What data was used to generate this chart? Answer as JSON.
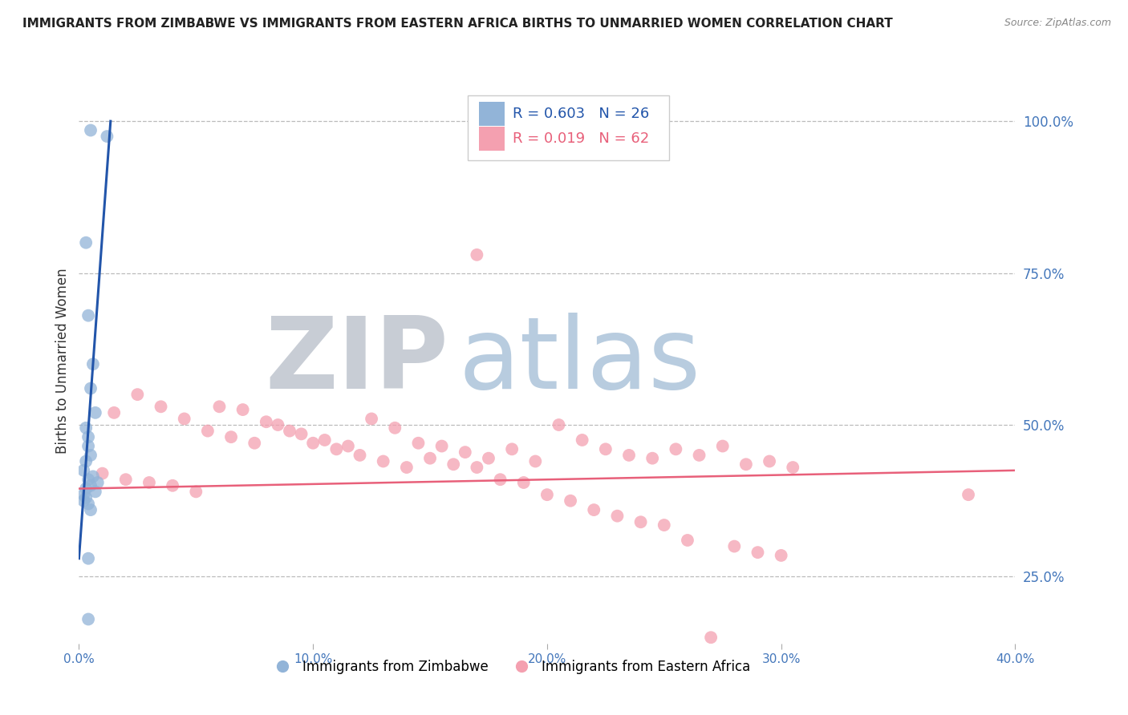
{
  "title": "IMMIGRANTS FROM ZIMBABWE VS IMMIGRANTS FROM EASTERN AFRICA BIRTHS TO UNMARRIED WOMEN CORRELATION CHART",
  "source": "Source: ZipAtlas.com",
  "ylabel": "Births to Unmarried Women",
  "right_yticks": [
    100.0,
    75.0,
    50.0,
    25.0
  ],
  "right_ytick_labels": [
    "100.0%",
    "75.0%",
    "50.0%",
    "25.0%"
  ],
  "legend_r1": "R = 0.603",
  "legend_n1": "N = 26",
  "legend_r2": "R = 0.019",
  "legend_n2": "N = 62",
  "blue_color": "#92B4D8",
  "pink_color": "#F4A0B0",
  "blue_line_color": "#2255AA",
  "pink_line_color": "#E8607A",
  "watermark_ZIP_color": "#C8CDD5",
  "watermark_atlas_color": "#B8CCDF",
  "background_color": "#FFFFFF",
  "grid_color": "#BBBBBB",
  "title_color": "#222222",
  "axis_label_color": "#4477BB",
  "xlim": [
    0.0,
    40.0
  ],
  "ylim": [
    14.0,
    107.0
  ],
  "xticks": [
    0.0,
    10.0,
    20.0,
    30.0,
    40.0
  ],
  "xtick_labels": [
    "0.0%",
    "10.0%",
    "20.0%",
    "30.0%",
    "40.0%"
  ],
  "blue_scatter_x": [
    0.5,
    1.2,
    0.3,
    0.4,
    0.6,
    0.5,
    0.7,
    0.3,
    0.4,
    0.4,
    0.5,
    0.3,
    0.2,
    0.6,
    0.4,
    0.8,
    0.5,
    0.3,
    0.7,
    0.2,
    0.3,
    0.2,
    0.4,
    0.5,
    0.4,
    0.4
  ],
  "blue_scatter_y": [
    98.5,
    97.5,
    80.0,
    68.0,
    60.0,
    56.0,
    52.0,
    49.5,
    48.0,
    46.5,
    45.0,
    44.0,
    42.5,
    41.5,
    41.0,
    40.5,
    40.0,
    39.5,
    39.0,
    38.5,
    38.0,
    37.5,
    37.0,
    36.0,
    28.0,
    18.0
  ],
  "pink_scatter_x": [
    1.5,
    2.5,
    3.5,
    4.5,
    5.5,
    6.5,
    7.5,
    8.5,
    9.5,
    10.5,
    11.5,
    12.5,
    13.5,
    14.5,
    15.5,
    16.5,
    17.5,
    18.5,
    19.5,
    20.5,
    21.5,
    22.5,
    23.5,
    24.5,
    25.5,
    26.5,
    27.5,
    28.5,
    29.5,
    30.5,
    1.0,
    2.0,
    3.0,
    4.0,
    5.0,
    6.0,
    7.0,
    8.0,
    9.0,
    10.0,
    11.0,
    12.0,
    13.0,
    14.0,
    15.0,
    16.0,
    17.0,
    18.0,
    19.0,
    20.0,
    21.0,
    22.0,
    23.0,
    24.0,
    25.0,
    26.0,
    27.0,
    28.0,
    29.0,
    30.0,
    38.0,
    17.0
  ],
  "pink_scatter_y": [
    52.0,
    55.0,
    53.0,
    51.0,
    49.0,
    48.0,
    47.0,
    50.0,
    48.5,
    47.5,
    46.5,
    51.0,
    49.5,
    47.0,
    46.5,
    45.5,
    44.5,
    46.0,
    44.0,
    50.0,
    47.5,
    46.0,
    45.0,
    44.5,
    46.0,
    45.0,
    46.5,
    43.5,
    44.0,
    43.0,
    42.0,
    41.0,
    40.5,
    40.0,
    39.0,
    53.0,
    52.5,
    50.5,
    49.0,
    47.0,
    46.0,
    45.0,
    44.0,
    43.0,
    44.5,
    43.5,
    43.0,
    41.0,
    40.5,
    38.5,
    37.5,
    36.0,
    35.0,
    34.0,
    33.5,
    31.0,
    15.0,
    30.0,
    29.0,
    28.5,
    38.5,
    78.0
  ],
  "blue_line_x": [
    0.0,
    1.35
  ],
  "blue_line_y": [
    28.0,
    100.0
  ],
  "pink_line_x": [
    0.0,
    40.0
  ],
  "pink_line_y": [
    39.5,
    42.5
  ]
}
